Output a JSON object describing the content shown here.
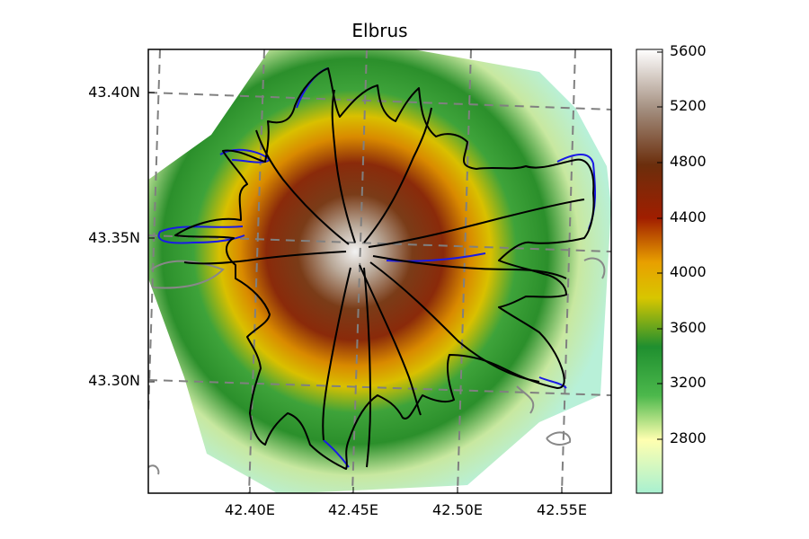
{
  "map": {
    "title": "Elbrus",
    "lat_ticks": [
      "43.40N",
      "43.35N",
      "43.30N"
    ],
    "lon_ticks": [
      "42.40E",
      "42.45E",
      "42.50E",
      "42.55E"
    ],
    "lon_range": [
      42.352,
      42.573
    ],
    "lat_range": [
      43.261,
      43.417
    ],
    "legend_placement": "right",
    "colorbar": {
      "ticks": [
        "5600",
        "5200",
        "4800",
        "4400",
        "4000",
        "3600",
        "3200",
        "2800"
      ],
      "range": [
        2600,
        5700
      ],
      "colors": [
        "#a8f0d0",
        "#ffffb0",
        "#2e9b2e",
        "#e8b400",
        "#8b1a00",
        "#6b3a10",
        "#ffffff"
      ]
    },
    "outline_colors": {
      "glacier": "#000000",
      "glacier_alt": "#1a1ae6",
      "debris": "#888888",
      "graticule": "#808080"
    }
  },
  "chart_data": {
    "type": "heatmap",
    "title": "Elbrus",
    "x_ticks": [
      "42.40E",
      "42.45E",
      "42.50E",
      "42.55E"
    ],
    "y_ticks": [
      "43.40N",
      "43.35N",
      "43.30N"
    ],
    "x_range": [
      42.352,
      42.573
    ],
    "y_range": [
      43.261,
      43.417
    ],
    "colorbar_ticks": [
      5600,
      5200,
      4800,
      4400,
      4000,
      3600,
      3200,
      2800
    ],
    "colorbar_range": [
      2600,
      5700
    ],
    "grid": true,
    "legend_placement": "right"
  }
}
